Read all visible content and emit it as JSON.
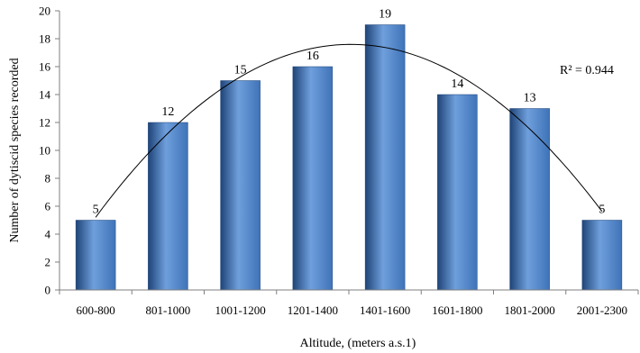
{
  "chart_data": {
    "type": "bar",
    "categories": [
      "600-800",
      "801-1000",
      "1001-1200",
      "1201-1400",
      "1401-1600",
      "1601-1800",
      "1801-2000",
      "2001-2300"
    ],
    "values": [
      5,
      12,
      15,
      16,
      19,
      14,
      13,
      5
    ],
    "xlabel": "Altitude, (meters a.s.1)",
    "ylabel": "Number of dytiscid species recorded",
    "ylim": [
      0,
      20
    ],
    "yticks": [
      0,
      2,
      4,
      6,
      8,
      10,
      12,
      14,
      16,
      18,
      20
    ],
    "data_labels": true,
    "grid": false,
    "trendline": {
      "type": "polynomial",
      "order": 2,
      "annotation": "R² = 0.944"
    },
    "colors": {
      "bar": "#3f73b8",
      "bar_dark": "#1f4478",
      "bar_light": "#6f9fdc",
      "axis": "#7f7f7f",
      "trendline": "#000000"
    }
  }
}
